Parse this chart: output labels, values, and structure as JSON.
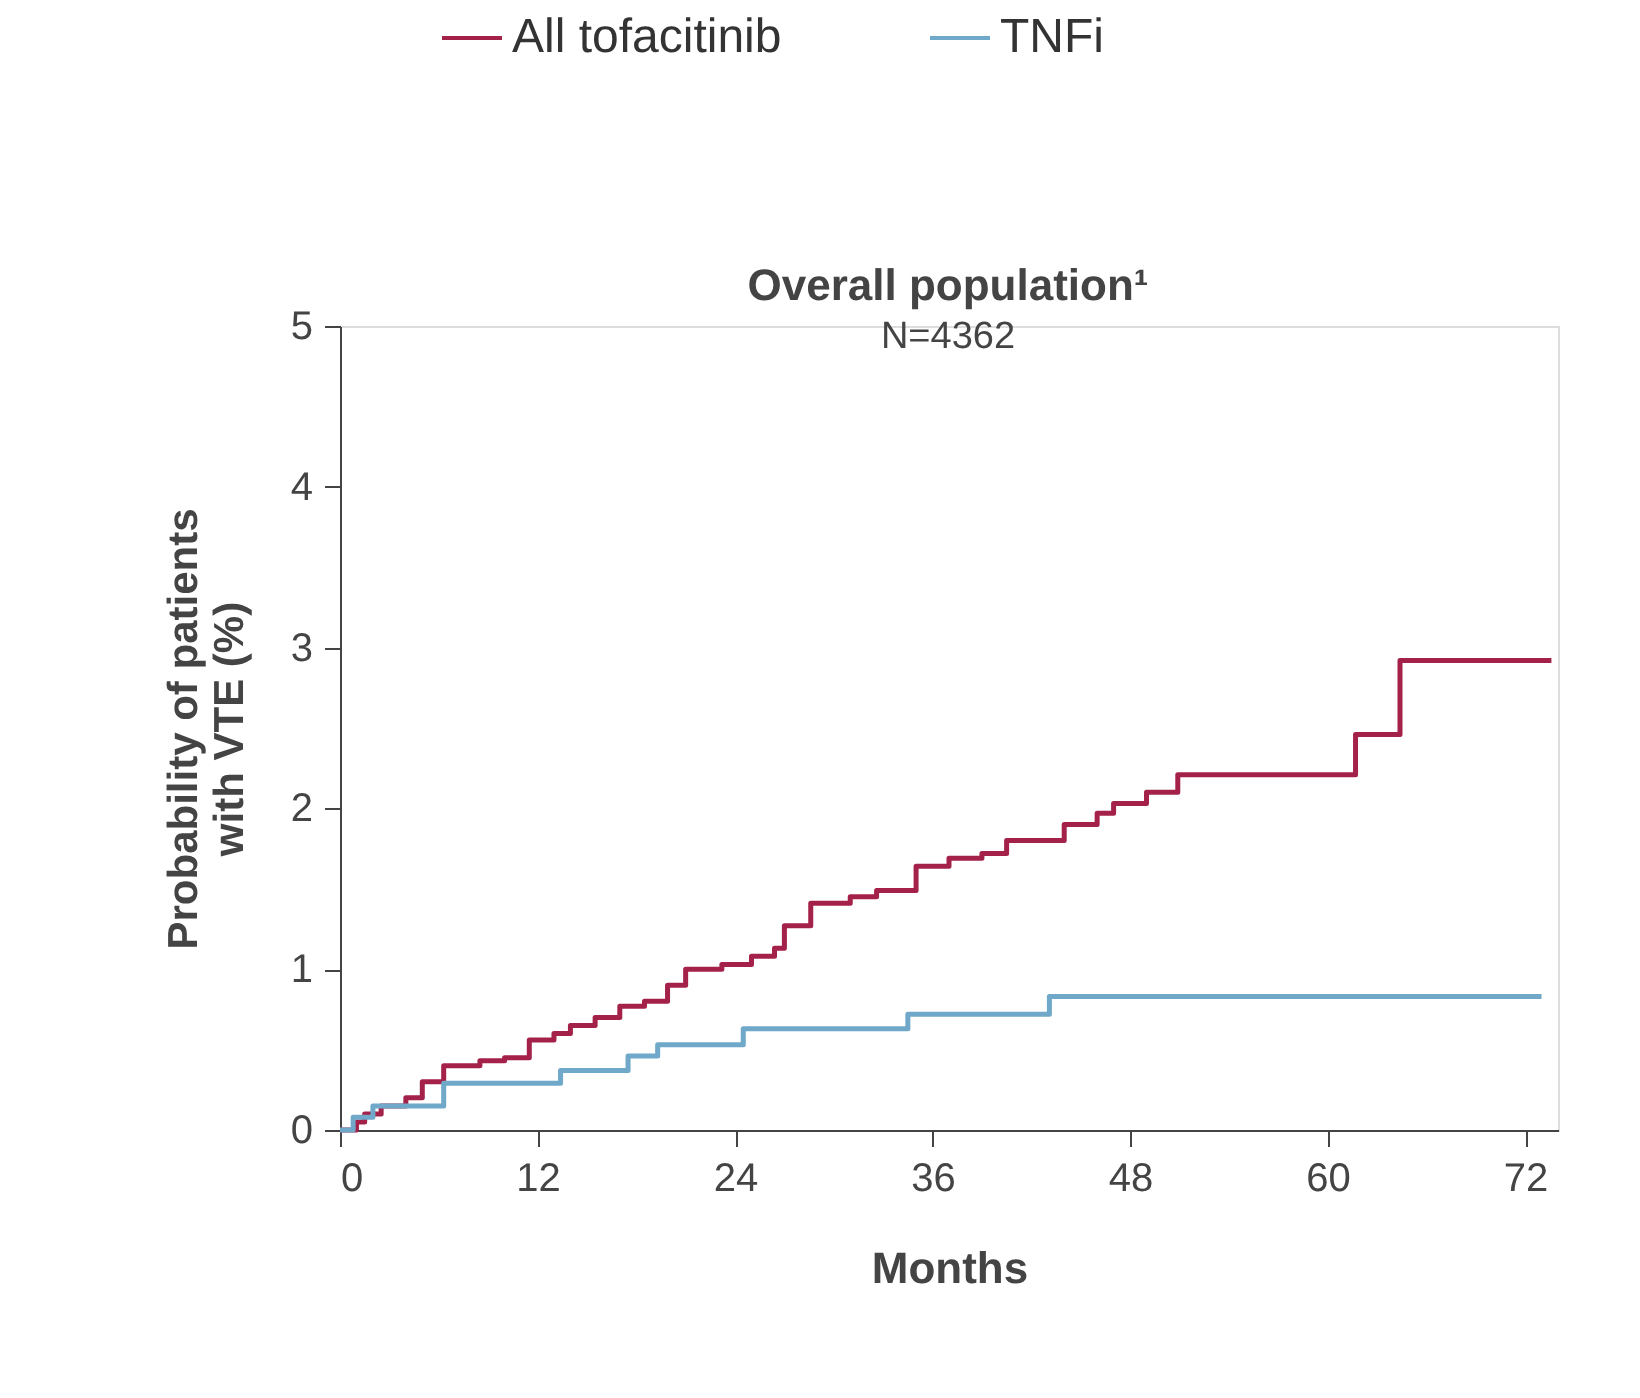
{
  "chart_data": {
    "type": "step",
    "title": "Overall population¹",
    "subtitle": "N=4362",
    "xlabel": "Months",
    "ylabel": "Probability of patients with VTE (%)",
    "xlim": [
      0,
      74
    ],
    "xticks": [
      0,
      12,
      24,
      36,
      48,
      60,
      72
    ],
    "ylim": [
      0,
      5
    ],
    "yticks": [
      0,
      1,
      2,
      3,
      4,
      5
    ],
    "grid": false,
    "legend": "top",
    "marker": "none",
    "line_style": "solid",
    "series": [
      {
        "name": "All tofacitinib",
        "color": "#a4224a",
        "x": [
          0,
          1,
          1.5,
          2.5,
          4,
          5,
          6.3,
          8.5,
          10,
          11.5,
          13,
          14,
          15.5,
          17,
          18.5,
          19.9,
          21,
          23.2,
          25,
          26.4,
          27,
          28.6,
          31,
          32.6,
          35,
          37,
          39,
          40.5,
          44,
          46,
          47,
          49,
          50.9,
          61.7,
          64.4,
          73.6
        ],
        "values": [
          0,
          0.05,
          0.1,
          0.15,
          0.2,
          0.3,
          0.4,
          0.43,
          0.45,
          0.56,
          0.6,
          0.65,
          0.7,
          0.77,
          0.8,
          0.9,
          1.0,
          1.03,
          1.08,
          1.13,
          1.27,
          1.41,
          1.45,
          1.49,
          1.64,
          1.69,
          1.72,
          1.8,
          1.9,
          1.97,
          2.03,
          2.1,
          2.21,
          2.46,
          2.92,
          2.92
        ]
      },
      {
        "name": "TNFi",
        "color": "#6fa8c8",
        "x": [
          0,
          0.8,
          2,
          6.3,
          13.4,
          17.5,
          19.3,
          24.5,
          34.5,
          43.1,
          73
        ],
        "values": [
          0,
          0.08,
          0.15,
          0.29,
          0.37,
          0.46,
          0.53,
          0.63,
          0.72,
          0.83,
          0.83
        ]
      }
    ]
  }
}
